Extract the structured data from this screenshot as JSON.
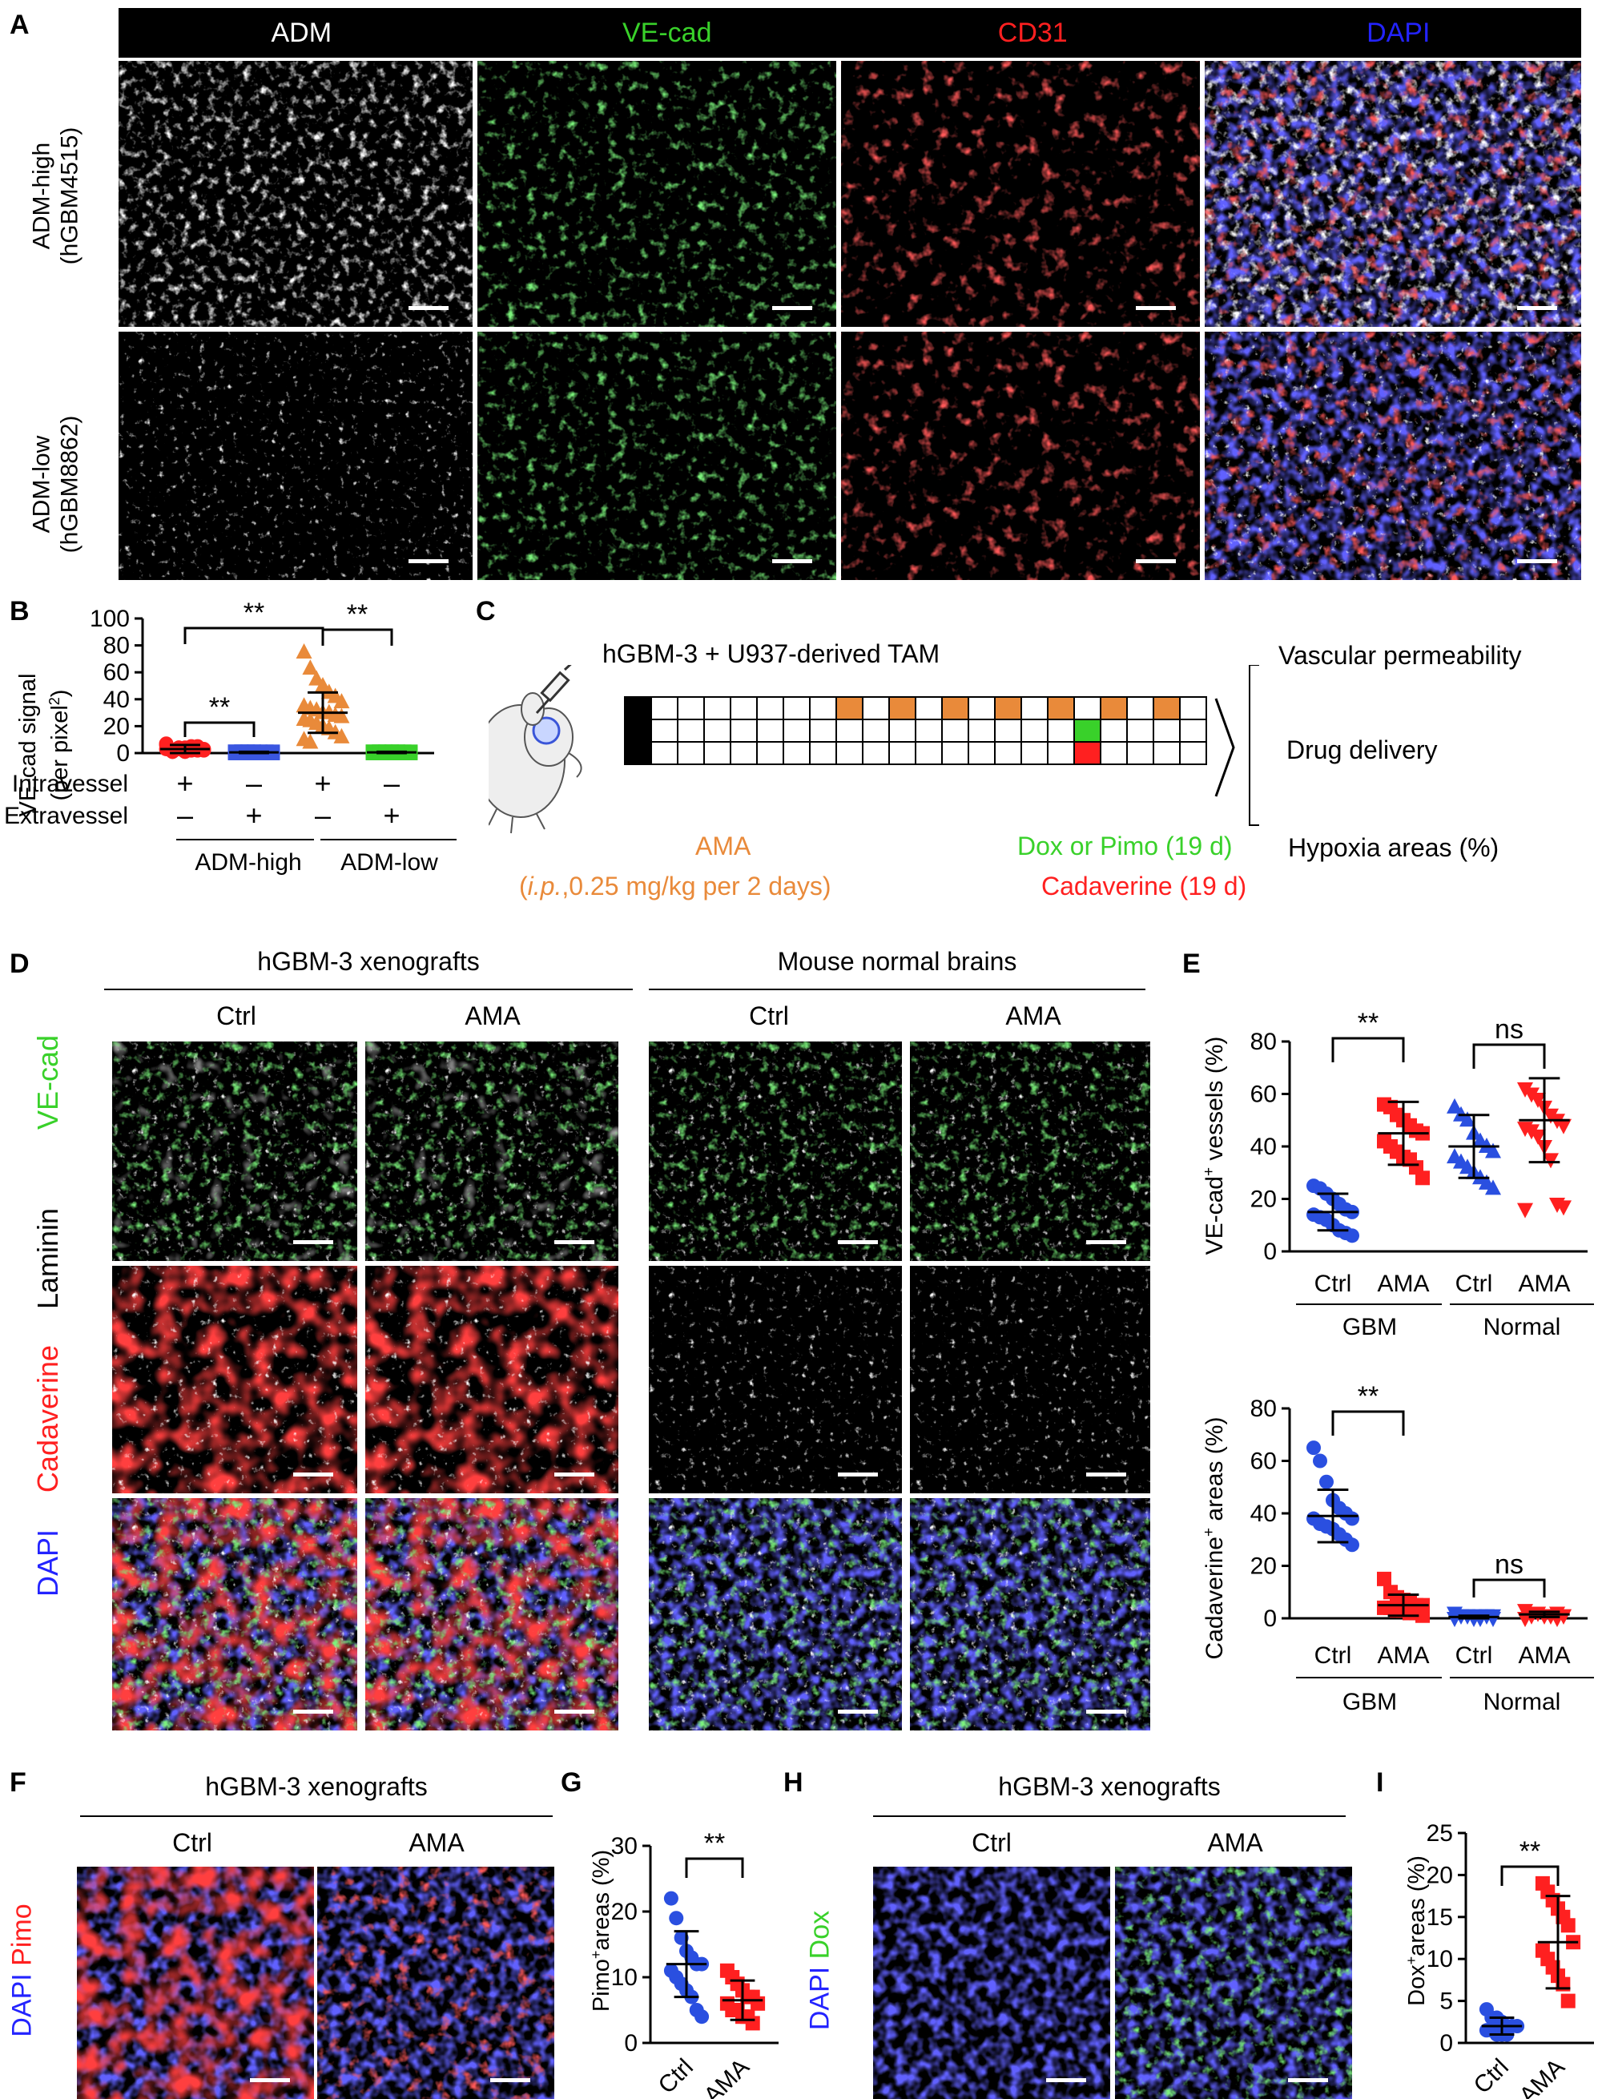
{
  "panels": [
    "A",
    "B",
    "C",
    "D",
    "E",
    "F",
    "G",
    "H",
    "I"
  ],
  "colors": {
    "white": "#ffffff",
    "green": "#39d12a",
    "red": "#ff2020",
    "blue": "#2323ff",
    "orange": "#e98a3a",
    "grey": "#888888"
  },
  "panelA": {
    "channels": [
      "ADM",
      "VE-cad",
      "CD31",
      "DAPI"
    ],
    "rows": [
      {
        "name": "ADM-high",
        "sub": "(hGBM4515)"
      },
      {
        "name": "ADM-low",
        "sub": "(hGBM8862)"
      }
    ]
  },
  "panelB": {
    "y_label": "VE-cad signal",
    "y_label2": "(per pixel",
    "y_sup": "2",
    "y_label3": ")",
    "y_ticks": [
      "0",
      "20",
      "40",
      "60",
      "80",
      "100"
    ],
    "row_intra": "Intravessel",
    "row_extra": "Extravessel",
    "intra_signs": [
      "+",
      "–",
      "+",
      "–"
    ],
    "extra_signs": [
      "–",
      "+",
      "–",
      "+"
    ],
    "group1": "ADM-high",
    "group2": "ADM-low",
    "sig": [
      "**",
      "**",
      "**"
    ]
  },
  "panelC": {
    "title": "hGBM-3 + U937-derived TAM",
    "outcomes": [
      "Vascular permeability",
      "Drug delivery",
      "Hypoxia areas (%)"
    ],
    "ama_label": "AMA",
    "ama_dose": "(i.p.,0.25 mg/kg per 2 days)",
    "ama_dose_italic": "i.p.",
    "ama_dose_rest": ",0.25 mg/kg per 2 days)",
    "dox_label": "Dox or Pimo (19 d)",
    "cad_label": "Cadaverine (19 d)"
  },
  "panelD": {
    "group_left": "hGBM-3 xenografts",
    "group_right": "Mouse normal brains",
    "columns": [
      "Ctrl",
      "AMA",
      "Ctrl",
      "AMA"
    ],
    "channels": [
      "VE-cad",
      "Laminin",
      "Cadaverine",
      "DAPI"
    ]
  },
  "panelE": {
    "top": {
      "y_label": "VE-cad",
      "y_sup": "+",
      "y_label_rest": " vessels (%)",
      "y_ticks": [
        "0",
        "20",
        "40",
        "60",
        "80"
      ],
      "x_labels": [
        "Ctrl",
        "AMA",
        "Ctrl",
        "AMA"
      ],
      "groups": [
        "GBM",
        "Normal"
      ],
      "sig": [
        "**",
        "ns"
      ]
    },
    "bottom": {
      "y_label": "Cadaverine",
      "y_sup": "+",
      "y_label_rest": " areas (%)",
      "y_ticks": [
        "0",
        "20",
        "40",
        "60",
        "80"
      ],
      "x_labels": [
        "Ctrl",
        "AMA",
        "Ctrl",
        "AMA"
      ],
      "groups": [
        "GBM",
        "Normal"
      ],
      "sig": [
        "**",
        "ns"
      ]
    }
  },
  "panelF": {
    "title": "hGBM-3 xenografts",
    "columns": [
      "Ctrl",
      "AMA"
    ],
    "channels": [
      "DAPI",
      "Pimo"
    ]
  },
  "panelG": {
    "y_label": "Pimo",
    "y_sup": "+",
    "y_label_rest": "areas (%)",
    "y_ticks": [
      "0",
      "10",
      "20",
      "30"
    ],
    "x_labels": [
      "Ctrl",
      "AMA"
    ],
    "sig": "**"
  },
  "panelH": {
    "title": "hGBM-3 xenografts",
    "columns": [
      "Ctrl",
      "AMA"
    ],
    "channels": [
      "DAPI",
      "Dox"
    ]
  },
  "panelI": {
    "y_label": "Dox",
    "y_sup": "+",
    "y_label_rest": "areas (%)",
    "y_ticks": [
      "0",
      "5",
      "10",
      "15",
      "20",
      "25"
    ],
    "x_labels": [
      "Ctrl",
      "AMA"
    ],
    "sig": "**"
  },
  "chart_data": [
    {
      "type": "scatter",
      "panel": "B",
      "ylim": [
        0,
        100
      ],
      "categories": [
        "ADM-high intravessel",
        "ADM-high extravessel",
        "ADM-low intravessel",
        "ADM-low extravessel"
      ],
      "series": [
        {
          "values": [
            3,
            2,
            4,
            1,
            5,
            2,
            3,
            6,
            1,
            4,
            2,
            3,
            5,
            2,
            7,
            1,
            3,
            4,
            2
          ],
          "mean": 3,
          "sd": 3
        },
        {
          "values": [
            1,
            0,
            1,
            1,
            0,
            1,
            0,
            1,
            1,
            0,
            1,
            1,
            0,
            1,
            0,
            1,
            1,
            0
          ],
          "mean": 0.5,
          "sd": 0.5
        },
        {
          "values": [
            75,
            63,
            55,
            50,
            45,
            42,
            38,
            35,
            33,
            32,
            30,
            30,
            28,
            27,
            25,
            24,
            22,
            20,
            18,
            15,
            12,
            10,
            8
          ],
          "mean": 30,
          "sd": 15
        },
        {
          "values": [
            1,
            0,
            1,
            1,
            0,
            1,
            0,
            1,
            1,
            0,
            1,
            1,
            0,
            1,
            0,
            1,
            1,
            0,
            1
          ],
          "mean": 0.5,
          "sd": 0.5
        }
      ]
    },
    {
      "type": "scatter",
      "panel": "E-top",
      "ylim": [
        0,
        80
      ],
      "categories": [
        "GBM Ctrl",
        "GBM AMA",
        "Normal Ctrl",
        "Normal AMA"
      ],
      "series": [
        {
          "values": [
            25,
            24,
            22,
            20,
            18,
            16,
            15,
            14,
            13,
            12,
            10,
            8,
            7,
            6
          ],
          "mean": 15,
          "sd": 7
        },
        {
          "values": [
            56,
            55,
            52,
            50,
            48,
            46,
            45,
            42,
            40,
            38,
            36,
            35,
            32,
            28
          ],
          "mean": 45,
          "sd": 12
        },
        {
          "values": [
            55,
            52,
            50,
            45,
            42,
            40,
            38,
            36,
            34,
            32,
            30,
            28,
            26,
            24
          ],
          "mean": 40,
          "sd": 12
        },
        {
          "values": [
            62,
            60,
            58,
            55,
            52,
            50,
            48,
            47,
            46,
            44,
            40,
            35,
            18,
            17,
            16
          ],
          "mean": 50,
          "sd": 16
        }
      ]
    },
    {
      "type": "scatter",
      "panel": "E-bottom",
      "ylim": [
        0,
        80
      ],
      "categories": [
        "GBM Ctrl",
        "GBM AMA",
        "Normal Ctrl",
        "Normal AMA"
      ],
      "series": [
        {
          "values": [
            65,
            60,
            52,
            45,
            42,
            40,
            38,
            38,
            36,
            35,
            34,
            32,
            30,
            28
          ],
          "mean": 39,
          "sd": 10
        },
        {
          "values": [
            15,
            10,
            8,
            7,
            6,
            5,
            5,
            4,
            4,
            3,
            3,
            2,
            2,
            1
          ],
          "mean": 5,
          "sd": 4
        },
        {
          "values": [
            2,
            1,
            1,
            1,
            0,
            1,
            1,
            0,
            1,
            1,
            0,
            1,
            1,
            0
          ],
          "mean": 0.5,
          "sd": 0.5
        },
        {
          "values": [
            3,
            2,
            2,
            1,
            1,
            2,
            1,
            0,
            1,
            2,
            1,
            1,
            0,
            1
          ],
          "mean": 1.5,
          "sd": 1
        }
      ]
    },
    {
      "type": "scatter",
      "panel": "G",
      "ylim": [
        0,
        30
      ],
      "categories": [
        "Ctrl",
        "AMA"
      ],
      "series": [
        {
          "values": [
            22,
            19,
            16,
            14,
            13,
            12,
            12,
            11,
            10,
            9,
            8,
            7,
            5,
            4
          ],
          "mean": 12,
          "sd": 5
        },
        {
          "values": [
            11,
            10,
            9,
            8,
            7,
            7,
            6,
            6,
            5,
            5,
            4,
            4,
            3
          ],
          "mean": 6.5,
          "sd": 3
        }
      ]
    },
    {
      "type": "scatter",
      "panel": "I",
      "ylim": [
        0,
        25
      ],
      "categories": [
        "Ctrl",
        "AMA"
      ],
      "series": [
        {
          "values": [
            4,
            3,
            3,
            2.5,
            2,
            2,
            2,
            1.5,
            1.5,
            1,
            1,
            1
          ],
          "mean": 2,
          "sd": 1
        },
        {
          "values": [
            19,
            18,
            17,
            16,
            15,
            14,
            12,
            11,
            10,
            9,
            8,
            7,
            5
          ],
          "mean": 12,
          "sd": 5.5
        }
      ]
    }
  ]
}
